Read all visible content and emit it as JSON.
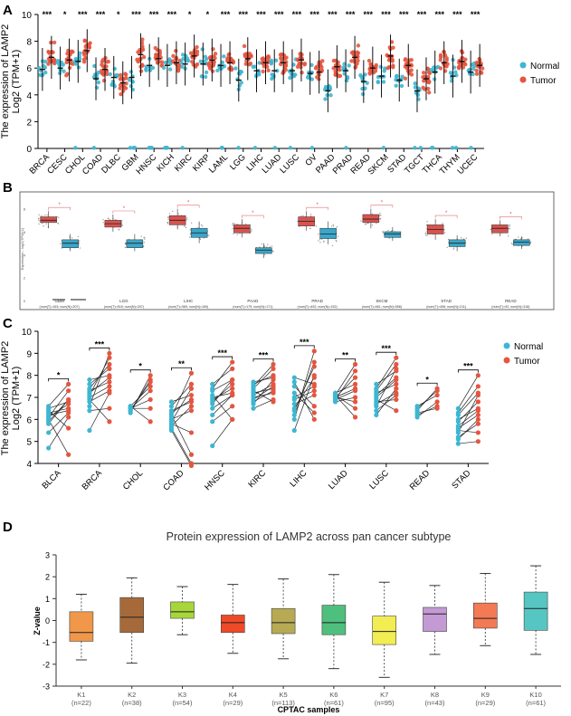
{
  "colors": {
    "normal": "#3eb6d2",
    "tumor": "#e5553f",
    "panel_b_normal": "#3aa6c9",
    "panel_b_tumor": "#d9534f",
    "k": [
      "#f0974a",
      "#a66a3a",
      "#a8d63a",
      "#ee4a28",
      "#b7aa55",
      "#4fbf7d",
      "#f1ed52",
      "#c49ad4",
      "#f27a55",
      "#56c6c2"
    ]
  },
  "chart_data": [
    {
      "panel": "A",
      "type": "scatter",
      "ylabel_line1": "The expression of LAMP2",
      "ylabel_line2": "Log2 (TPM+1)",
      "ylim": [
        0,
        10
      ],
      "yticks": [
        0,
        2,
        4,
        6,
        8,
        10
      ],
      "legend": [
        "Normal",
        "Tumor"
      ],
      "legend_position": "right",
      "categories": [
        "BRCA",
        "CESC",
        "CHOL",
        "COAD",
        "DLBC",
        "GBM",
        "HNSC",
        "KICH",
        "KIRC",
        "KIRP",
        "LAML",
        "LGG",
        "LIHC",
        "LUAD",
        "LUSC",
        "OV",
        "PAAD",
        "PRAD",
        "READ",
        "SKCM",
        "STAD",
        "TGCT",
        "THCA",
        "THYM",
        "UCEC"
      ],
      "significance": [
        "***",
        "*",
        "***",
        "***",
        "*",
        "***",
        "***",
        "***",
        "*",
        "*",
        "***",
        "***",
        "***",
        "***",
        "***",
        "***",
        "***",
        "***",
        "***",
        "***",
        "***",
        "***",
        "***",
        "***",
        "***"
      ],
      "series": [
        {
          "name": "Normal",
          "medians": [
            5.9,
            6.0,
            6.5,
            5.2,
            5.3,
            5.3,
            6.2,
            6.2,
            6.3,
            6.3,
            6.2,
            5.1,
            5.8,
            5.8,
            5.8,
            5.6,
            4.3,
            5.8,
            5.0,
            5.4,
            5.1,
            4.3,
            5.7,
            5.4,
            5.7
          ]
        },
        {
          "name": "Tumor",
          "medians": [
            6.8,
            6.6,
            7.3,
            5.9,
            4.9,
            7.0,
            6.7,
            6.4,
            6.9,
            6.6,
            6.4,
            6.7,
            6.4,
            6.4,
            6.6,
            5.7,
            6.1,
            6.8,
            6.0,
            6.9,
            6.2,
            5.2,
            6.4,
            6.5,
            6.2
          ]
        }
      ]
    },
    {
      "panel": "B",
      "type": "box",
      "ylabel": "Expression - log2(TPM+1)",
      "ylim": [
        0,
        9
      ],
      "groups": [
        {
          "name": "GBM",
          "n": "(num(T)=163; num(N)=207)",
          "tumor": [
            6.3,
            6.8,
            7.0,
            7.3,
            7.8
          ],
          "normal": [
            4.3,
            4.6,
            5.0,
            5.3,
            5.8
          ]
        },
        {
          "name": "LGG",
          "n": "(num(T)=518; num(N)=207)",
          "tumor": [
            6.0,
            6.4,
            6.7,
            7.0,
            7.5
          ],
          "normal": [
            4.3,
            4.6,
            5.0,
            5.3,
            5.8
          ]
        },
        {
          "name": "LIHC",
          "n": "(num(T)=369; num(N)=160)",
          "tumor": [
            6.2,
            6.6,
            7.0,
            7.4,
            8.0
          ],
          "normal": [
            5.0,
            5.5,
            5.9,
            6.3,
            6.9
          ]
        },
        {
          "name": "PAAD",
          "n": "(num(T)=179; num(N)=171)",
          "tumor": [
            5.5,
            5.9,
            6.3,
            6.6,
            7.1
          ],
          "normal": [
            3.7,
            4.1,
            4.4,
            4.6,
            5.0
          ]
        },
        {
          "name": "PRAD",
          "n": "(num(T)=492; num(N)=152)",
          "tumor": [
            6.1,
            6.5,
            6.9,
            7.3,
            7.8
          ],
          "normal": [
            4.9,
            5.4,
            5.8,
            6.3,
            6.9
          ]
        },
        {
          "name": "SKCM",
          "n": "(num(T)=461; num(N)=558)",
          "tumor": [
            6.3,
            6.8,
            7.1,
            7.5,
            8.0
          ],
          "normal": [
            5.2,
            5.5,
            5.8,
            6.0,
            6.4
          ]
        },
        {
          "name": "STAD",
          "n": "(num(T)=408; num(N)=211)",
          "tumor": [
            5.3,
            5.8,
            6.2,
            6.6,
            7.1
          ],
          "normal": [
            4.3,
            4.7,
            5.0,
            5.3,
            5.7
          ]
        },
        {
          "name": "READ",
          "n": "(num(T)=92; num(N)=318)",
          "tumor": [
            5.6,
            5.9,
            6.3,
            6.6,
            7.0
          ],
          "normal": [
            4.5,
            4.8,
            5.1,
            5.3,
            5.6
          ]
        }
      ]
    },
    {
      "panel": "C",
      "type": "paired",
      "ylabel_line1": "The expression of LAMP2",
      "ylabel_line2": "Log2 (TPM+1)",
      "ylim": [
        4,
        10
      ],
      "yticks": [
        4,
        5,
        6,
        7,
        8,
        9,
        10
      ],
      "legend": [
        "Normal",
        "Tumor"
      ],
      "categories": [
        "BLCA",
        "BRCA",
        "CHOL",
        "COAD",
        "HNSC",
        "KIRC",
        "LIHC",
        "LUAD",
        "LUSC",
        "READ",
        "STAD"
      ],
      "significance": [
        "*",
        "***",
        "*",
        "**",
        "***",
        "***",
        "***",
        "**",
        "***",
        "*",
        "***"
      ],
      "pairs": [
        {
          "normal": [
            6.3,
            6.5,
            5.9,
            6.1,
            4.7,
            6.6,
            6.0,
            5.4,
            6.2,
            6.4,
            5.8,
            6.1
          ],
          "tumor": [
            6.5,
            6.8,
            6.9,
            7.3,
            6.1,
            7.6,
            4.4,
            6.3,
            6.4,
            5.6,
            6.9,
            6.7
          ]
        },
        {
          "normal": [
            7.2,
            6.8,
            7.4,
            6.6,
            7.0,
            7.8,
            6.4,
            7.1,
            5.5,
            7.6,
            6.9,
            7.3
          ],
          "tumor": [
            7.9,
            7.3,
            8.5,
            9.0,
            7.5,
            8.0,
            6.5,
            8.8,
            7.2,
            8.3,
            5.9,
            7.7
          ]
        },
        {
          "normal": [
            6.4,
            6.5,
            6.6,
            6.3,
            6.5,
            6.6,
            6.4,
            6.5
          ],
          "tumor": [
            7.8,
            7.3,
            7.5,
            8.0,
            6.5,
            5.9,
            7.7,
            6.9
          ]
        },
        {
          "normal": [
            6.3,
            5.8,
            6.6,
            6.1,
            5.6,
            6.8,
            6.0,
            5.5,
            6.4,
            5.9,
            6.2,
            5.7
          ],
          "tumor": [
            6.9,
            5.4,
            7.6,
            8.1,
            4.0,
            7.1,
            6.4,
            3.9,
            6.8,
            7.4,
            4.4,
            6.6
          ]
        },
        {
          "normal": [
            6.9,
            7.3,
            6.5,
            7.6,
            5.9,
            7.0,
            4.8,
            6.7,
            7.4,
            6.2,
            7.1,
            6.8
          ],
          "tumor": [
            7.4,
            7.8,
            7.1,
            8.3,
            6.6,
            7.2,
            6.0,
            7.8,
            8.6,
            7.1,
            6.0,
            7.6
          ]
        },
        {
          "normal": [
            7.1,
            6.8,
            7.4,
            7.6,
            6.5,
            7.2,
            6.9,
            7.5,
            7.0,
            6.7,
            7.3,
            7.7
          ],
          "tumor": [
            7.6,
            7.3,
            8.3,
            8.0,
            6.9,
            7.4,
            7.5,
            8.5,
            7.2,
            7.8,
            6.8,
            7.9
          ]
        },
        {
          "normal": [
            6.9,
            6.5,
            7.5,
            6.2,
            7.9,
            6.0,
            7.2,
            5.5,
            6.7,
            7.7,
            6.4,
            7.0
          ],
          "tumor": [
            7.3,
            7.9,
            6.6,
            8.6,
            7.6,
            9.1,
            6.3,
            8.0,
            7.1,
            6.0,
            8.4,
            7.5
          ]
        },
        {
          "normal": [
            7.0,
            7.1,
            6.9,
            7.2,
            6.8,
            7.1,
            7.0,
            6.9,
            7.1,
            7.0
          ],
          "tumor": [
            7.4,
            6.5,
            8.2,
            7.6,
            7.0,
            6.1,
            7.9,
            7.3,
            8.5,
            6.8
          ]
        },
        {
          "normal": [
            7.0,
            6.7,
            7.3,
            6.4,
            7.6,
            6.9,
            7.1,
            6.2,
            7.4,
            6.8,
            7.2,
            6.6
          ],
          "tumor": [
            7.8,
            7.2,
            8.5,
            7.1,
            8.2,
            6.4,
            7.9,
            7.4,
            8.8,
            6.9,
            7.6,
            8.3
          ]
        },
        {
          "normal": [
            6.1,
            6.3,
            6.5,
            6.2,
            6.6,
            6.4
          ],
          "tumor": [
            6.8,
            6.5,
            7.3,
            6.6,
            7.1,
            7.4
          ]
        },
        {
          "normal": [
            5.6,
            5.2,
            6.3,
            5.9,
            4.9,
            6.0,
            5.4,
            6.5,
            5.1,
            5.7,
            6.2,
            5.5
          ],
          "tumor": [
            6.2,
            5.8,
            7.5,
            6.8,
            5.0,
            6.5,
            7.1,
            8.0,
            6.0,
            6.4,
            7.2,
            5.4
          ]
        }
      ]
    },
    {
      "panel": "D",
      "type": "box",
      "title": "Protein expression of LAMP2 across pan cancer subtype",
      "xlabel": "CPTAC samples",
      "ylabel": "Z-value",
      "ylim": [
        -3,
        3
      ],
      "yticks": [
        -3,
        -2,
        -1,
        0,
        1,
        2,
        3
      ],
      "categories": [
        "K1",
        "K2",
        "K3",
        "K4",
        "K5",
        "K6",
        "K7",
        "K8",
        "K9",
        "K10"
      ],
      "n_labels": [
        "(n=22)",
        "(n=38)",
        "(n=54)",
        "(n=29)",
        "(n=113)",
        "(n=61)",
        "(n=95)",
        "(n=43)",
        "(n=29)",
        "(n=61)"
      ],
      "boxes": [
        {
          "min": -1.8,
          "q1": -0.95,
          "median": -0.55,
          "q3": 0.4,
          "max": 1.2
        },
        {
          "min": -1.95,
          "q1": -0.55,
          "median": 0.15,
          "q3": 1.05,
          "max": 1.95
        },
        {
          "min": -0.65,
          "q1": 0.1,
          "median": 0.4,
          "q3": 0.85,
          "max": 1.55
        },
        {
          "min": -1.5,
          "q1": -0.55,
          "median": -0.1,
          "q3": 0.25,
          "max": 1.65
        },
        {
          "min": -1.75,
          "q1": -0.6,
          "median": -0.1,
          "q3": 0.55,
          "max": 1.9
        },
        {
          "min": -2.2,
          "q1": -0.65,
          "median": -0.1,
          "q3": 0.7,
          "max": 2.1
        },
        {
          "min": -2.6,
          "q1": -1.1,
          "median": -0.5,
          "q3": 0.2,
          "max": 1.75
        },
        {
          "min": -1.55,
          "q1": -0.5,
          "median": 0.3,
          "q3": 0.6,
          "max": 1.6
        },
        {
          "min": -1.15,
          "q1": -0.35,
          "median": 0.1,
          "q3": 0.8,
          "max": 2.15
        },
        {
          "min": -1.55,
          "q1": -0.45,
          "median": 0.55,
          "q3": 1.3,
          "max": 2.5
        }
      ]
    }
  ],
  "panel_labels": [
    "A",
    "B",
    "C",
    "D"
  ]
}
